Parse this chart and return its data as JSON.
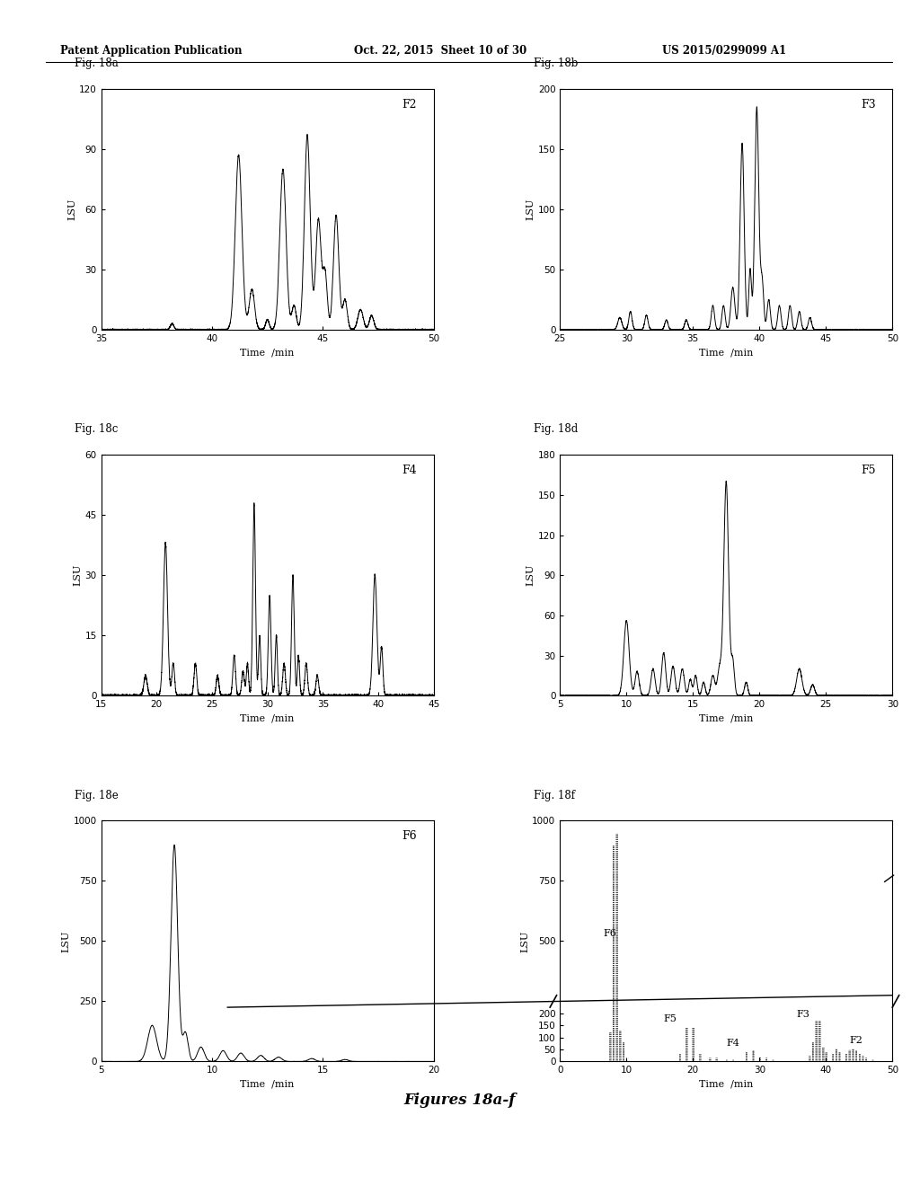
{
  "header_left": "Patent Application Publication",
  "header_mid": "Oct. 22, 2015  Sheet 10 of 30",
  "header_right": "US 2015/0299099 A1",
  "footer": "Figures 18a-f",
  "background_color": "#ffffff",
  "line_color": "#000000",
  "plots": [
    {
      "label": "Fig. 18a",
      "tag": "F2",
      "xlim": [
        35,
        50
      ],
      "ylim": [
        0,
        120
      ],
      "xticks": [
        35,
        40,
        45,
        50
      ],
      "yticks": [
        0,
        30,
        60,
        90,
        120
      ],
      "xlabel": "Time  /min",
      "ylabel": "LSU"
    },
    {
      "label": "Fig. 18b",
      "tag": "F3",
      "xlim": [
        25,
        50
      ],
      "ylim": [
        0,
        200
      ],
      "xticks": [
        25,
        30,
        35,
        40,
        45,
        50
      ],
      "yticks": [
        0,
        50,
        100,
        150,
        200
      ],
      "xlabel": "Time  /min",
      "ylabel": "LSU"
    },
    {
      "label": "Fig. 18c",
      "tag": "F4",
      "xlim": [
        15,
        45
      ],
      "ylim": [
        0,
        60
      ],
      "xticks": [
        15,
        20,
        25,
        30,
        35,
        40,
        45
      ],
      "yticks": [
        0,
        15,
        30,
        45,
        60
      ],
      "xlabel": "Time  /min",
      "ylabel": "LSU"
    },
    {
      "label": "Fig. 18d",
      "tag": "F5",
      "xlim": [
        5,
        30
      ],
      "ylim": [
        0,
        180
      ],
      "xticks": [
        5,
        10,
        15,
        20,
        25,
        30
      ],
      "yticks": [
        0,
        30,
        60,
        90,
        120,
        150,
        180
      ],
      "xlabel": "Time  /min",
      "ylabel": "LSU"
    },
    {
      "label": "Fig. 18e",
      "tag": "F6",
      "xlim": [
        5,
        20
      ],
      "ylim": [
        0,
        1000
      ],
      "xticks": [
        5,
        10,
        15,
        20
      ],
      "yticks": [
        0,
        250,
        500,
        750,
        1000
      ],
      "xlabel": "Time  /min",
      "ylabel": "LSU"
    },
    {
      "label": "Fig. 18f",
      "tag": "",
      "xlim": [
        0,
        50
      ],
      "ylim": [
        0,
        1000
      ],
      "xticks": [
        0,
        10,
        20,
        30,
        40,
        50
      ],
      "yticks": [
        0,
        50,
        100,
        150,
        200,
        500,
        750,
        1000
      ],
      "xlabel": "Time  /min",
      "ylabel": "LSU"
    }
  ]
}
